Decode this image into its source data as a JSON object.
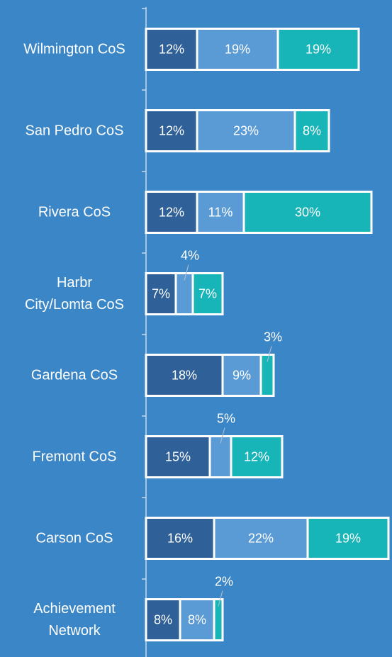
{
  "chart_data": {
    "type": "stacked-bar-horizontal",
    "categories": [
      "Wilmington CoS",
      "San Pedro CoS",
      "Rivera CoS",
      "Harbr City/Lomta CoS",
      "Gardena CoS",
      "Fremont CoS",
      "Carson CoS",
      "Achievement Network"
    ],
    "series": [
      {
        "color": "#2f6098",
        "values": [
          12,
          12,
          12,
          7,
          18,
          15,
          16,
          8
        ],
        "value_labels": [
          "12%",
          "12%",
          "12%",
          "7%",
          "18%",
          "15%",
          "16%",
          "8%"
        ]
      },
      {
        "color": "#5b9bd5",
        "values": [
          19,
          23,
          11,
          4,
          9,
          5,
          22,
          8
        ],
        "value_labels": [
          "19%",
          "23%",
          "11%",
          "4%",
          "9%",
          "5%",
          "22%",
          "8%"
        ]
      },
      {
        "color": "#17b5b8",
        "values": [
          19,
          8,
          30,
          7,
          3,
          12,
          19,
          2
        ],
        "value_labels": [
          "19%",
          "8%",
          "30%",
          "7%",
          "3%",
          "12%",
          "19%",
          "2%"
        ]
      }
    ],
    "xlim": [
      0,
      57.5
    ]
  }
}
